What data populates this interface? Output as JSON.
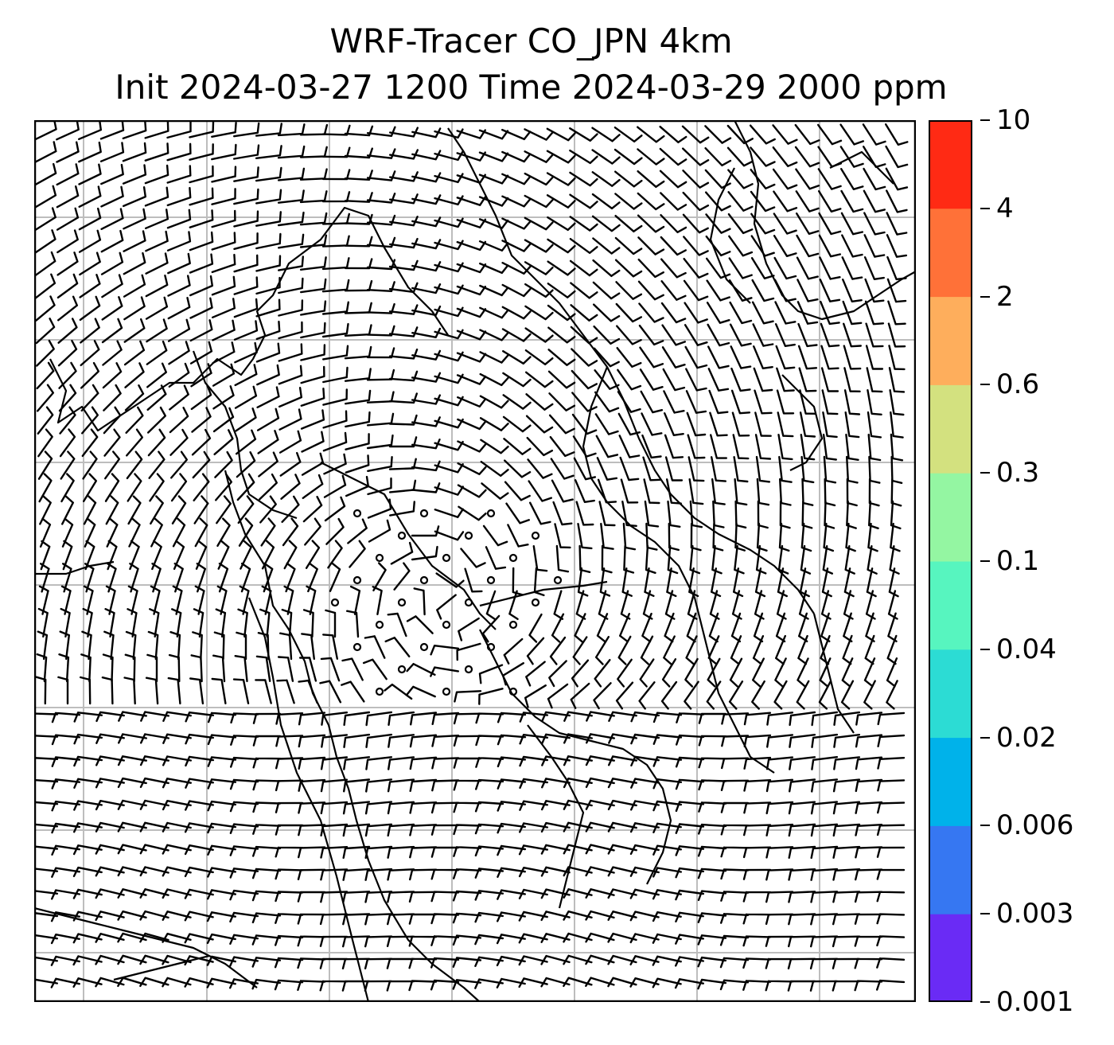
{
  "title": {
    "line1": "WRF-Tracer CO_JPN 4km",
    "line2": "Init 2024-03-27 1200 Time 2024-03-29 2000 ppm"
  },
  "map": {
    "grid_color": "#bdbdbd",
    "coastline_color": "#000000",
    "barb_color": "#000000",
    "background": "#ffffff"
  },
  "colorbar": {
    "levels": [
      "0.001",
      "0.003",
      "0.006",
      "0.02",
      "0.04",
      "0.1",
      "0.3",
      "0.6",
      "2",
      "4",
      "10"
    ],
    "colors": [
      "#6a2bf5",
      "#3677f2",
      "#00b2ea",
      "#2cdcd4",
      "#57f5bf",
      "#94f6a2",
      "#d3e17f",
      "#feae5c",
      "#ff7138",
      "#ff2a14"
    ]
  }
}
